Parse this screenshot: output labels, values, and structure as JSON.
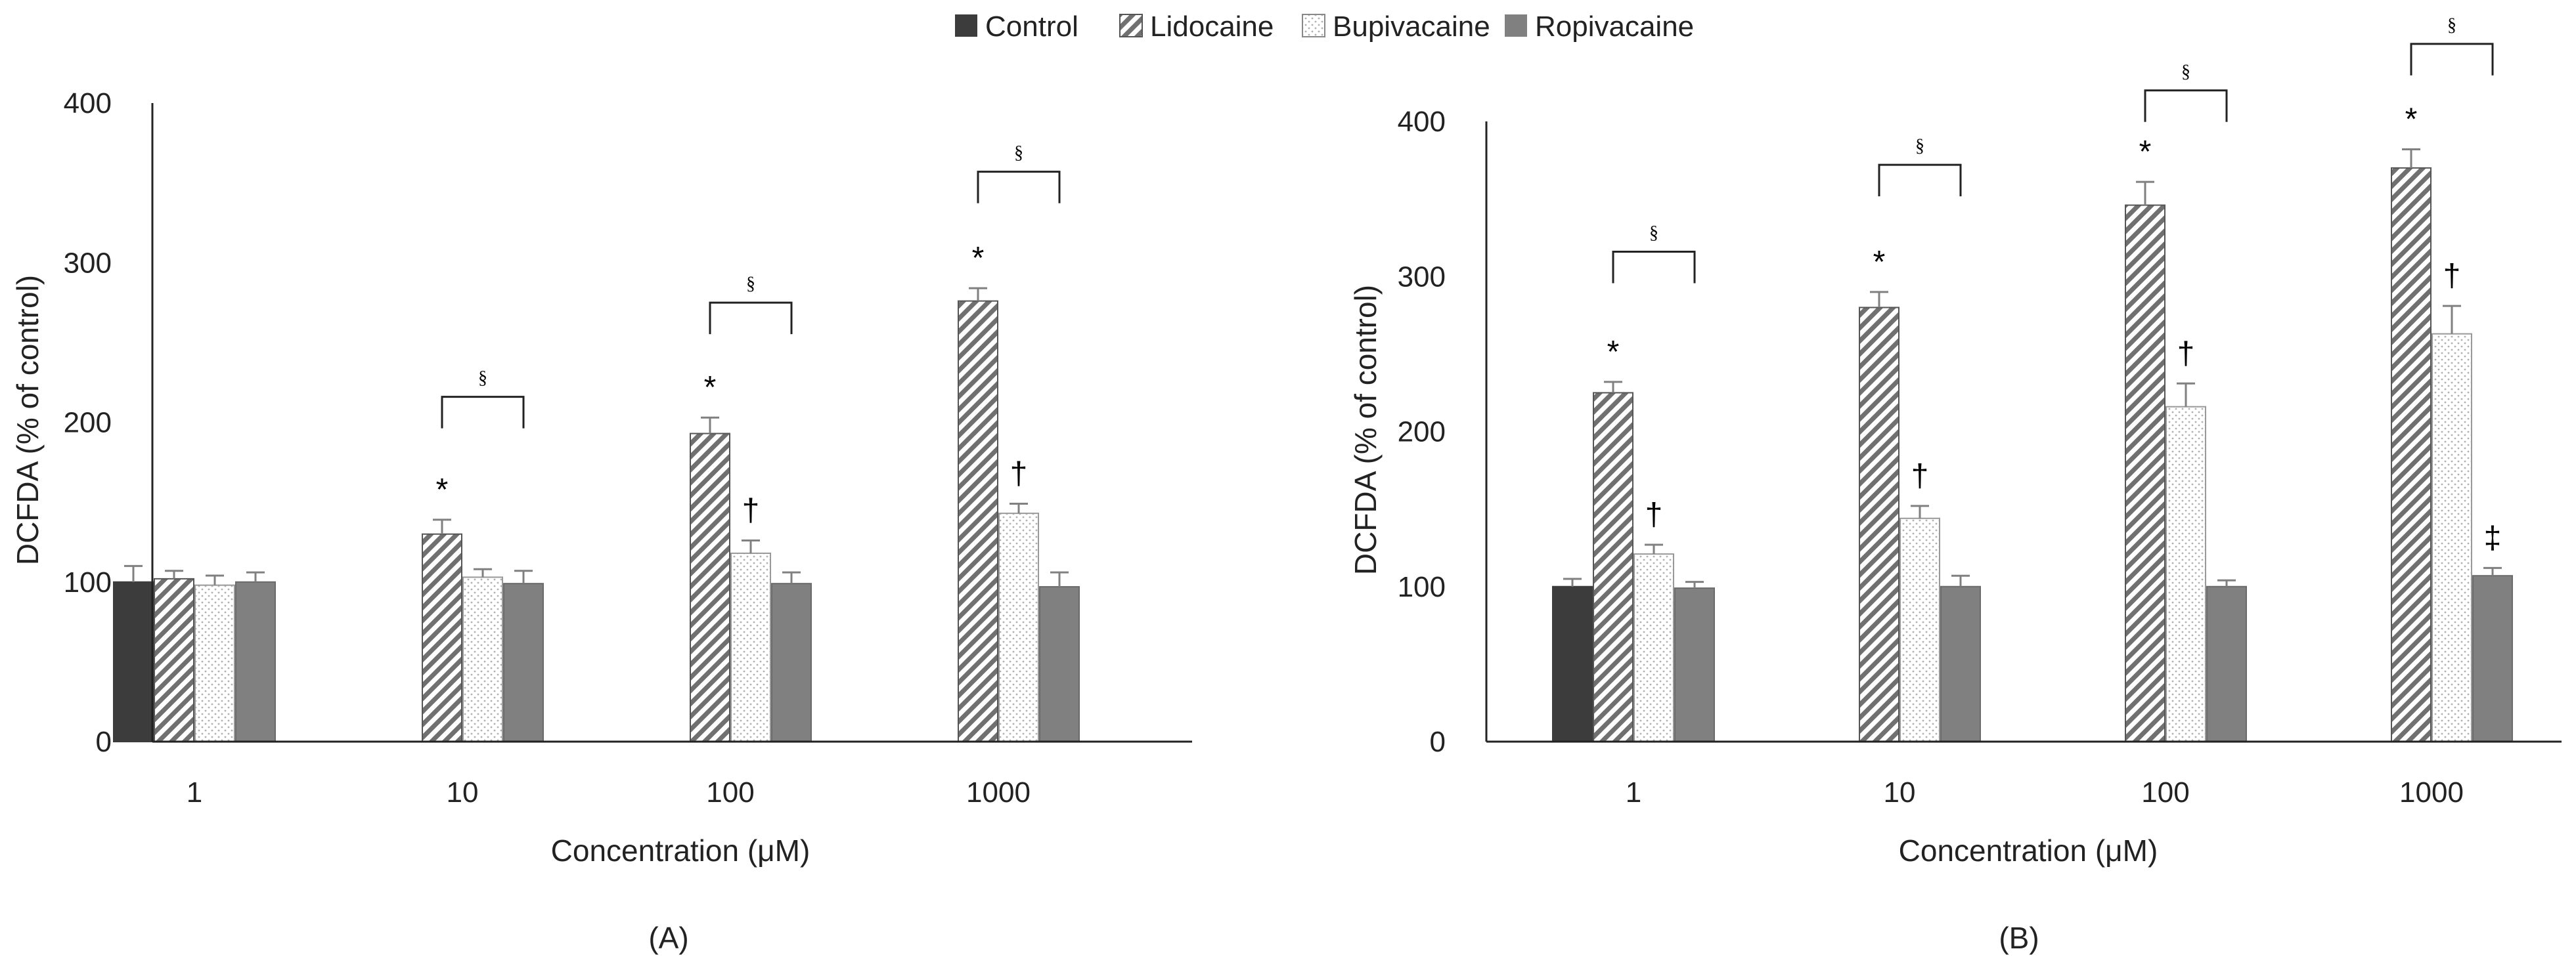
{
  "legend": [
    {
      "name": "Control",
      "style": "control"
    },
    {
      "name": "Lidocaine",
      "style": "lidocaine"
    },
    {
      "name": "Bupivacaine",
      "style": "bupivacaine"
    },
    {
      "name": "Ropivacaine",
      "style": "ropivacaine"
    }
  ],
  "colors": {
    "control": "#3c3c3c",
    "lidocaine_hatch": "#707070",
    "bupivacaine_dot": "#b0b0b0",
    "ropivacaine": "#808080",
    "error_bar": "#808080",
    "axis": "#222222"
  },
  "chart_data": [
    {
      "type": "bar",
      "panel_label": "(A)",
      "xlabel": "Concentration (μM)",
      "ylabel": "DCFDA (% of control)",
      "ylim": [
        0,
        400
      ],
      "yticks": [
        "0",
        "100",
        "200",
        "300",
        "400"
      ],
      "categories": [
        "1",
        "10",
        "100",
        "1000"
      ],
      "series": [
        {
          "name": "Control",
          "values": [
            100,
            null,
            null,
            null
          ],
          "errors": [
            10,
            null,
            null,
            null
          ]
        },
        {
          "name": "Lidocaine",
          "values": [
            102,
            130,
            193,
            276
          ],
          "errors": [
            5,
            9,
            10,
            8
          ]
        },
        {
          "name": "Bupivacaine",
          "values": [
            98,
            103,
            118,
            143
          ],
          "errors": [
            6,
            5,
            8,
            6
          ]
        },
        {
          "name": "Ropivacaine",
          "values": [
            100,
            99,
            99,
            97
          ],
          "errors": [
            6,
            8,
            7,
            9
          ]
        }
      ],
      "annotations": [
        {
          "category": 1,
          "series": 1,
          "text": "*"
        },
        {
          "category": 2,
          "series": 1,
          "text": "*"
        },
        {
          "category": 2,
          "series": 2,
          "text": "†"
        },
        {
          "category": 3,
          "series": 1,
          "text": "*"
        },
        {
          "category": 3,
          "series": 2,
          "text": "†"
        }
      ],
      "brackets": [
        {
          "category": 1,
          "from_series": 1,
          "to_series": 3,
          "level": 216,
          "text": "§"
        },
        {
          "category": 2,
          "from_series": 1,
          "to_series": 3,
          "level": 275,
          "text": "§"
        },
        {
          "category": 3,
          "from_series": 1,
          "to_series": 3,
          "level": 357,
          "text": "§"
        }
      ]
    },
    {
      "type": "bar",
      "panel_label": "(B)",
      "xlabel": "Concentration (μM)",
      "ylabel": "DCFDA (% of control)",
      "ylim": [
        0,
        400
      ],
      "yticks": [
        "0",
        "100",
        "200",
        "300",
        "400"
      ],
      "categories": [
        "1",
        "10",
        "100",
        "1000"
      ],
      "series": [
        {
          "name": "Control",
          "values": [
            100,
            null,
            null,
            null
          ],
          "errors": [
            5,
            null,
            null,
            null
          ]
        },
        {
          "name": "Lidocaine",
          "values": [
            225,
            280,
            346,
            370
          ],
          "errors": [
            7,
            10,
            15,
            12
          ]
        },
        {
          "name": "Bupivacaine",
          "values": [
            121,
            144,
            216,
            263
          ],
          "errors": [
            6,
            8,
            15,
            18
          ]
        },
        {
          "name": "Ropivacaine",
          "values": [
            99,
            100,
            100,
            107
          ],
          "errors": [
            4,
            7,
            4,
            5
          ]
        }
      ],
      "annotations": [
        {
          "category": 0,
          "series": 1,
          "text": "*"
        },
        {
          "category": 0,
          "series": 2,
          "text": "†"
        },
        {
          "category": 1,
          "series": 1,
          "text": "*"
        },
        {
          "category": 1,
          "series": 2,
          "text": "†"
        },
        {
          "category": 2,
          "series": 1,
          "text": "*"
        },
        {
          "category": 2,
          "series": 2,
          "text": "†"
        },
        {
          "category": 3,
          "series": 1,
          "text": "*"
        },
        {
          "category": 3,
          "series": 2,
          "text": "†"
        },
        {
          "category": 3,
          "series": 3,
          "text": "‡"
        }
      ],
      "brackets": [
        {
          "category": 0,
          "from_series": 1,
          "to_series": 3,
          "level": 316,
          "text": "§"
        },
        {
          "category": 1,
          "from_series": 1,
          "to_series": 3,
          "level": 372,
          "text": "§"
        },
        {
          "category": 2,
          "from_series": 1,
          "to_series": 3,
          "level": 420,
          "text": "§"
        },
        {
          "category": 3,
          "from_series": 1,
          "to_series": 3,
          "level": 450,
          "text": "§"
        }
      ]
    }
  ]
}
